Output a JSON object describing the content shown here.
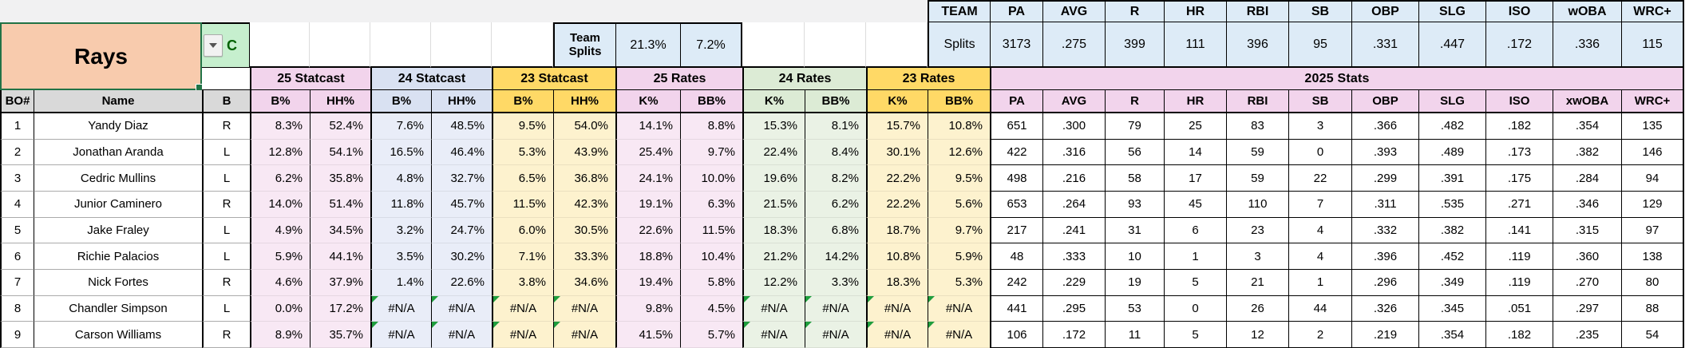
{
  "team": {
    "name": "Rays",
    "position_filter": "C"
  },
  "team_splits": {
    "label": "Team Splits",
    "k_pct": "21.3%",
    "bb_pct": "7.2%"
  },
  "team_totals": {
    "corner": "TEAM",
    "row_label": "Splits",
    "columns": [
      "PA",
      "AVG",
      "R",
      "HR",
      "RBI",
      "SB",
      "OBP",
      "SLG",
      "ISO",
      "wOBA",
      "WRC+"
    ],
    "values": [
      "3173",
      ".275",
      "399",
      "111",
      "396",
      "95",
      ".331",
      ".447",
      ".172",
      ".336",
      "115"
    ]
  },
  "group_headers": [
    "25 Statcast",
    "24 Statcast",
    "23 Statcast",
    "25 Rates",
    "24 Rates",
    "23 Rates"
  ],
  "stats_banner": "2025 Stats",
  "table_headers": {
    "bo": "BO#",
    "name": "Name",
    "bats": "B",
    "metric_pairs": [
      "B%",
      "HH%",
      "B%",
      "HH%",
      "B%",
      "HH%",
      "K%",
      "BB%",
      "K%",
      "BB%",
      "K%",
      "BB%"
    ],
    "stat_columns": [
      "PA",
      "AVG",
      "R",
      "HR",
      "RBI",
      "SB",
      "OBP",
      "SLG",
      "ISO",
      "xwOBA",
      "WRC+"
    ]
  },
  "players": [
    {
      "bo": "1",
      "name": "Yandy Diaz",
      "bats": "R",
      "metrics": [
        "8.3%",
        "52.4%",
        "7.6%",
        "48.5%",
        "9.5%",
        "54.0%",
        "14.1%",
        "8.8%",
        "15.3%",
        "8.1%",
        "15.7%",
        "10.8%"
      ],
      "stats": [
        "651",
        ".300",
        "79",
        "25",
        "83",
        "3",
        ".366",
        ".482",
        ".182",
        ".354",
        "135"
      ]
    },
    {
      "bo": "2",
      "name": "Jonathan Aranda",
      "bats": "L",
      "metrics": [
        "12.8%",
        "54.1%",
        "16.5%",
        "46.4%",
        "5.3%",
        "43.9%",
        "25.4%",
        "9.7%",
        "22.4%",
        "8.4%",
        "30.1%",
        "12.6%"
      ],
      "stats": [
        "422",
        ".316",
        "56",
        "14",
        "59",
        "0",
        ".393",
        ".489",
        ".173",
        ".382",
        "146"
      ]
    },
    {
      "bo": "3",
      "name": "Cedric Mullins",
      "bats": "L",
      "metrics": [
        "6.2%",
        "35.8%",
        "4.8%",
        "32.7%",
        "6.5%",
        "36.8%",
        "24.1%",
        "10.0%",
        "19.6%",
        "8.2%",
        "22.2%",
        "9.5%"
      ],
      "stats": [
        "498",
        ".216",
        "58",
        "17",
        "59",
        "22",
        ".299",
        ".391",
        ".175",
        ".284",
        "94"
      ]
    },
    {
      "bo": "4",
      "name": "Junior Caminero",
      "bats": "R",
      "metrics": [
        "14.0%",
        "51.4%",
        "11.8%",
        "45.7%",
        "11.5%",
        "42.3%",
        "19.1%",
        "6.3%",
        "21.5%",
        "6.2%",
        "22.2%",
        "5.6%"
      ],
      "stats": [
        "653",
        ".264",
        "93",
        "45",
        "110",
        "7",
        ".311",
        ".535",
        ".271",
        ".346",
        "129"
      ]
    },
    {
      "bo": "5",
      "name": "Jake Fraley",
      "bats": "L",
      "metrics": [
        "4.9%",
        "34.5%",
        "3.2%",
        "24.7%",
        "6.0%",
        "30.5%",
        "22.6%",
        "11.5%",
        "18.3%",
        "6.8%",
        "18.7%",
        "9.7%"
      ],
      "stats": [
        "217",
        ".241",
        "31",
        "6",
        "23",
        "4",
        ".332",
        ".382",
        ".141",
        ".315",
        "97"
      ]
    },
    {
      "bo": "6",
      "name": "Richie Palacios",
      "bats": "L",
      "metrics": [
        "5.9%",
        "44.1%",
        "3.5%",
        "30.2%",
        "7.1%",
        "33.3%",
        "18.8%",
        "10.4%",
        "21.2%",
        "14.2%",
        "10.8%",
        "5.9%"
      ],
      "stats": [
        "48",
        ".333",
        "10",
        "1",
        "3",
        "4",
        ".396",
        ".452",
        ".119",
        ".360",
        "138"
      ]
    },
    {
      "bo": "7",
      "name": "Nick Fortes",
      "bats": "R",
      "metrics": [
        "4.6%",
        "37.9%",
        "1.4%",
        "22.6%",
        "3.8%",
        "34.6%",
        "19.4%",
        "5.8%",
        "12.2%",
        "3.3%",
        "18.3%",
        "5.3%"
      ],
      "stats": [
        "242",
        ".229",
        "19",
        "5",
        "21",
        "1",
        ".296",
        ".349",
        ".119",
        ".270",
        "80"
      ]
    },
    {
      "bo": "8",
      "name": "Chandler Simpson",
      "bats": "L",
      "metrics": [
        "0.0%",
        "17.2%",
        "#N/A",
        "#N/A",
        "#N/A",
        "#N/A",
        "9.8%",
        "4.5%",
        "#N/A",
        "#N/A",
        "#N/A",
        "#N/A"
      ],
      "stats": [
        "441",
        ".295",
        "53",
        "0",
        "26",
        "44",
        ".326",
        ".345",
        ".051",
        ".297",
        "88"
      ]
    },
    {
      "bo": "9",
      "name": "Carson Williams",
      "bats": "R",
      "metrics": [
        "8.9%",
        "35.7%",
        "#N/A",
        "#N/A",
        "#N/A",
        "#N/A",
        "41.5%",
        "5.7%",
        "#N/A",
        "#N/A",
        "#N/A",
        "#N/A"
      ],
      "stats": [
        "106",
        ".172",
        "11",
        "5",
        "12",
        "2",
        ".219",
        ".354",
        ".182",
        ".235",
        "54"
      ]
    }
  ],
  "icons": {
    "dropdown_arrow": "filter-dropdown-arrow"
  },
  "colors": {
    "team_cell": "#F8CBAD",
    "filter_cell_bg": "#C6EFCE",
    "filter_cell_text": "#006100",
    "splits_bg": "#DDEBF7",
    "statcast25_header": "#F2D4EC",
    "statcast24_header": "#D9E1F2",
    "statcast23_header": "#FFD966",
    "rates24_header": "#DCEBD5",
    "stats_header_pink": "#F2D4EC",
    "header_gray": "#D9D9D9",
    "na_flag_green": "#1F9E3D",
    "selection_border": "#217346"
  }
}
